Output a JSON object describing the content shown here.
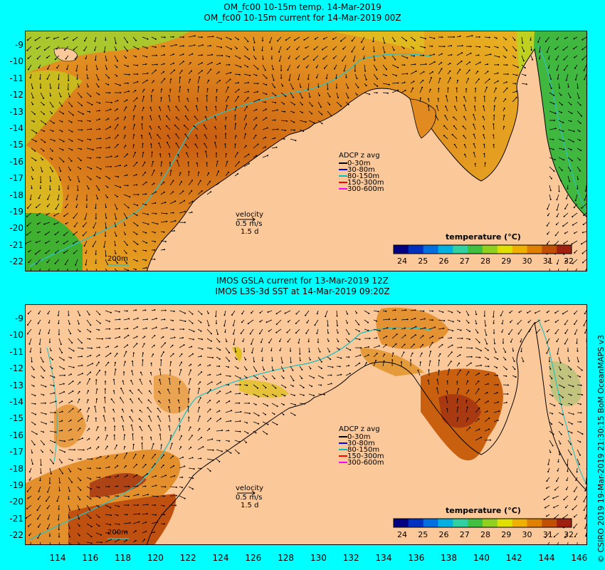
{
  "panels": [
    {
      "title_line1": "OM_fc00 10-15m temp. 14-Mar-2019",
      "title_line2": "OM_fc00 10-15m current for 14-Mar-2019 00Z",
      "velocity_label": "velocity",
      "velocity_value": "0.5 m/s",
      "velocity_days": "1.5 d",
      "isobath_label": "200m",
      "adcp": {
        "title": "ADCP z avg",
        "entries": [
          {
            "label": "0-30m",
            "color": "#000000"
          },
          {
            "label": "30-80m",
            "color": "#0000ff"
          },
          {
            "label": "80-150m",
            "color": "#00c0c0"
          },
          {
            "label": "150-300m",
            "color": "#ff0000"
          },
          {
            "label": "300-600m",
            "color": "#ff00ff"
          }
        ]
      },
      "colorbar_title": "temperature (°C)"
    },
    {
      "title_line1": "IMOS GSLA current for 13-Mar-2019 12Z",
      "title_line2": "IMOS L3S-3d SST at 14-Mar-2019 09:20Z",
      "velocity_label": "velocity",
      "velocity_value": "0.5 m/s",
      "velocity_days": "1.5 d",
      "isobath_label": "200m",
      "adcp": {
        "title": "ADCP z avg",
        "entries": [
          {
            "label": "0-30m",
            "color": "#000000"
          },
          {
            "label": "30-80m",
            "color": "#0000ff"
          },
          {
            "label": "80-150m",
            "color": "#00c0c0"
          },
          {
            "label": "150-300m",
            "color": "#ff0000"
          },
          {
            "label": "300-600m",
            "color": "#ff00ff"
          }
        ]
      },
      "colorbar_title": "temperature (°C)"
    }
  ],
  "colorbar": {
    "ticks": [
      "24",
      "25",
      "26",
      "27",
      "28",
      "29",
      "30",
      "31",
      "32"
    ],
    "colors": [
      "#000080",
      "#0030c0",
      "#0070e0",
      "#00b0e0",
      "#30d0a0",
      "#40c040",
      "#90d020",
      "#e0e000",
      "#f0b000",
      "#e08000",
      "#c05000",
      "#a02010"
    ]
  },
  "lat_labels": [
    "-9",
    "-10",
    "-11",
    "-12",
    "-13",
    "-14",
    "-15",
    "-16",
    "-17",
    "-18",
    "-19",
    "-20",
    "-21",
    "-22"
  ],
  "lon_labels": [
    "114",
    "116",
    "118",
    "120",
    "122",
    "124",
    "126",
    "128",
    "130",
    "132",
    "134",
    "136",
    "138",
    "140",
    "142",
    "144",
    "146"
  ],
  "land_color": "#fbc89a",
  "ocean_color": "#e08a20",
  "credit": "© CSIRO 2019  19-Mar-2019 21:30:15 BoM OceanMAPS v3"
}
